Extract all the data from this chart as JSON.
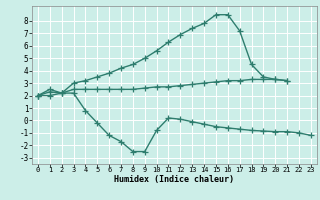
{
  "xlabel": "Humidex (Indice chaleur)",
  "bg_color": "#cceee8",
  "grid_color": "#ffffff",
  "line_color": "#2e7d6e",
  "xlim": [
    -0.5,
    23.5
  ],
  "ylim": [
    -3.5,
    9.2
  ],
  "xticks": [
    0,
    1,
    2,
    3,
    4,
    5,
    6,
    7,
    8,
    9,
    10,
    11,
    12,
    13,
    14,
    15,
    16,
    17,
    18,
    19,
    20,
    21,
    22,
    23
  ],
  "yticks": [
    -3,
    -2,
    -1,
    0,
    1,
    2,
    3,
    4,
    5,
    6,
    7,
    8
  ],
  "line1_x": [
    0,
    1,
    2,
    3,
    4,
    5,
    6,
    7,
    8,
    9,
    10,
    11,
    12,
    13,
    14,
    15,
    16,
    17,
    18,
    19,
    20,
    21
  ],
  "line1_y": [
    2.0,
    2.5,
    2.2,
    3.0,
    3.2,
    3.5,
    3.8,
    4.2,
    4.5,
    5.0,
    5.6,
    6.3,
    6.9,
    7.4,
    7.8,
    8.5,
    8.5,
    7.2,
    4.5,
    3.5,
    3.3,
    3.2
  ],
  "line2_x": [
    0,
    1,
    2,
    3,
    4,
    5,
    6,
    7,
    8,
    9,
    10,
    11,
    12,
    13,
    14,
    15,
    16,
    17,
    18,
    19,
    20,
    21
  ],
  "line2_y": [
    2.0,
    2.3,
    2.2,
    2.5,
    2.5,
    2.5,
    2.5,
    2.5,
    2.5,
    2.6,
    2.7,
    2.7,
    2.8,
    2.9,
    3.0,
    3.1,
    3.2,
    3.2,
    3.3,
    3.3,
    3.3,
    3.2
  ],
  "line3_x": [
    0,
    1,
    2,
    3,
    4,
    5,
    6,
    7,
    8,
    9,
    10,
    11,
    12,
    13,
    14,
    15,
    16,
    17,
    18,
    19,
    20,
    21,
    22,
    23
  ],
  "line3_y": [
    2.0,
    2.0,
    2.2,
    2.2,
    0.8,
    -0.2,
    -1.2,
    -1.7,
    -2.5,
    -2.5,
    -0.8,
    0.2,
    0.1,
    -0.1,
    -0.3,
    -0.5,
    -0.6,
    -0.7,
    -0.8,
    -0.85,
    -0.9,
    -0.9,
    -1.0,
    -1.2
  ],
  "marker": "+",
  "markersize": 4,
  "linewidth": 1.0
}
